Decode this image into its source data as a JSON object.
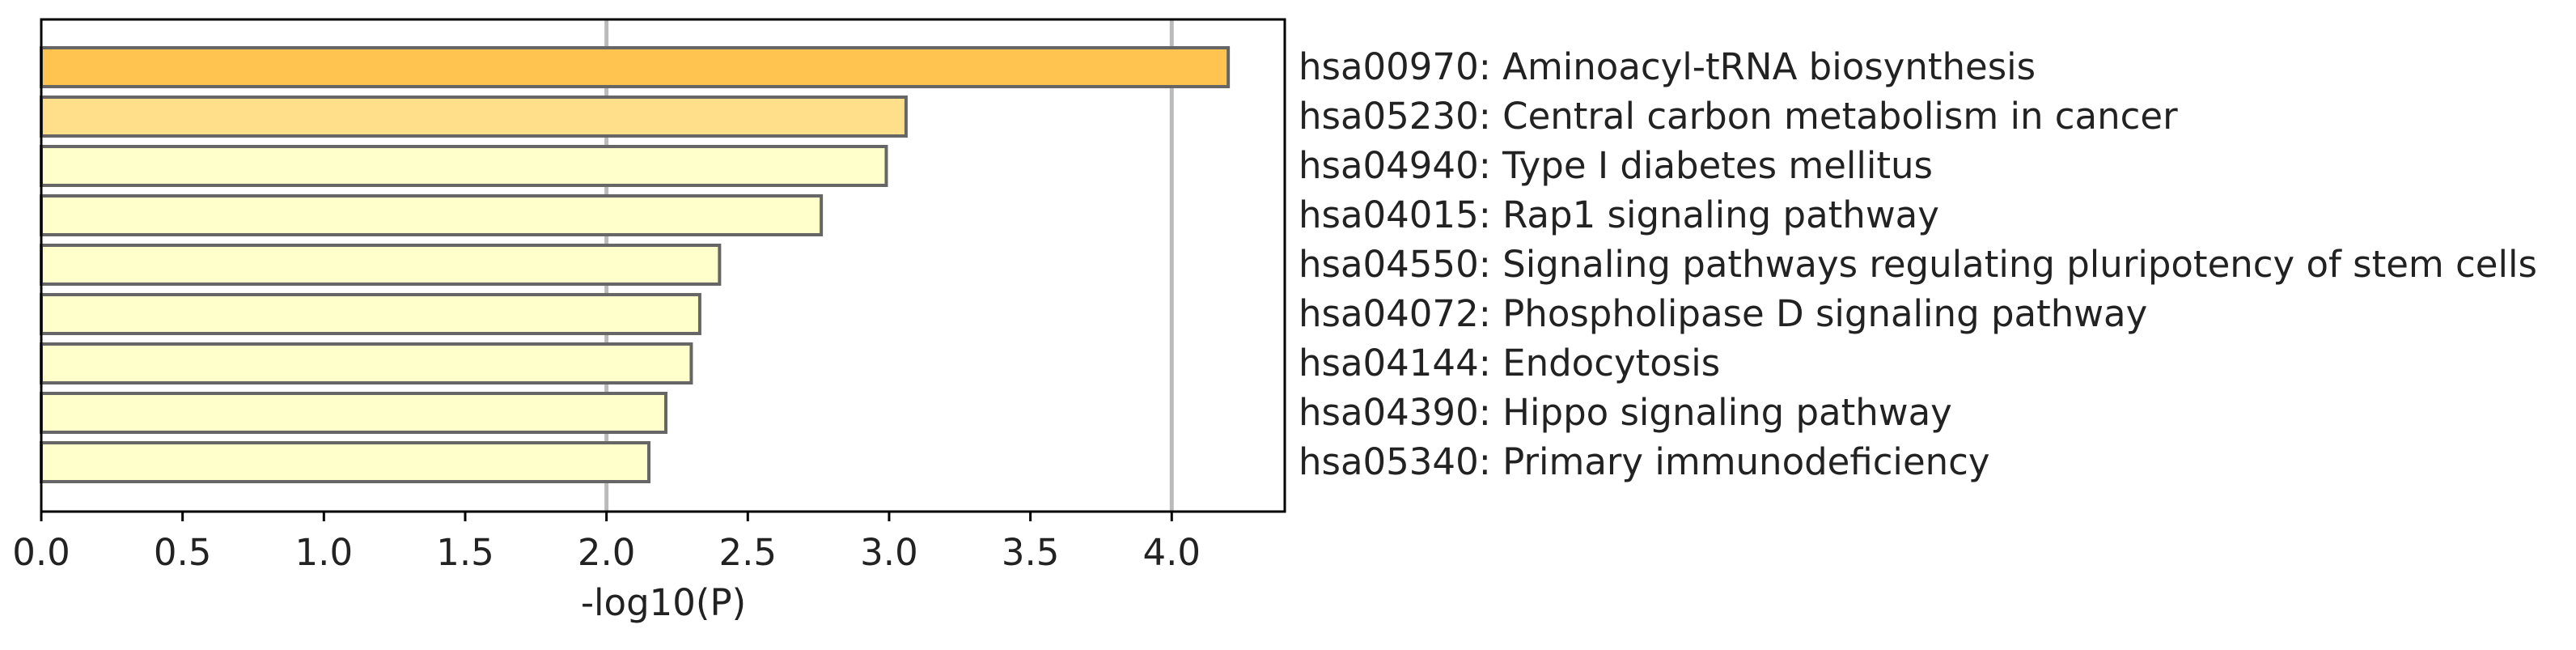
{
  "chart_data": {
    "type": "bar",
    "orientation": "horizontal",
    "x_label": "-log10(P)",
    "categories": [
      "hsa00970: Aminoacyl-tRNA biosynthesis",
      "hsa05230: Central carbon metabolism in cancer",
      "hsa04940: Type I diabetes mellitus",
      "hsa04015: Rap1 signaling pathway",
      "hsa04550: Signaling pathways regulating pluripotency of stem cells",
      "hsa04072: Phospholipase D signaling pathway",
      "hsa04144: Endocytosis",
      "hsa04390: Hippo signaling pathway",
      "hsa05340: Primary immunodeficiency"
    ],
    "values": [
      4.2,
      3.06,
      2.99,
      2.76,
      2.4,
      2.33,
      2.3,
      2.21,
      2.15
    ],
    "colors": [
      "#ffc350",
      "#ffdf8a",
      "#ffffcc",
      "#ffffcc",
      "#ffffcc",
      "#ffffcc",
      "#ffffcc",
      "#ffffcc",
      "#ffffcc"
    ],
    "edge_color": "#666666",
    "xlim": [
      0,
      4.4
    ],
    "xticks": [
      {
        "value": 0,
        "label": "0.0"
      },
      0.5,
      {
        "value": 1,
        "label": "1.0"
      },
      1.5,
      {
        "value": 2,
        "label": "2.0"
      },
      2.5,
      {
        "value": 3,
        "label": "3.0"
      },
      3.5,
      {
        "value": 4,
        "label": "4.0"
      }
    ],
    "vlines": [
      2,
      4
    ],
    "vline_color": "#bbbbbb"
  }
}
